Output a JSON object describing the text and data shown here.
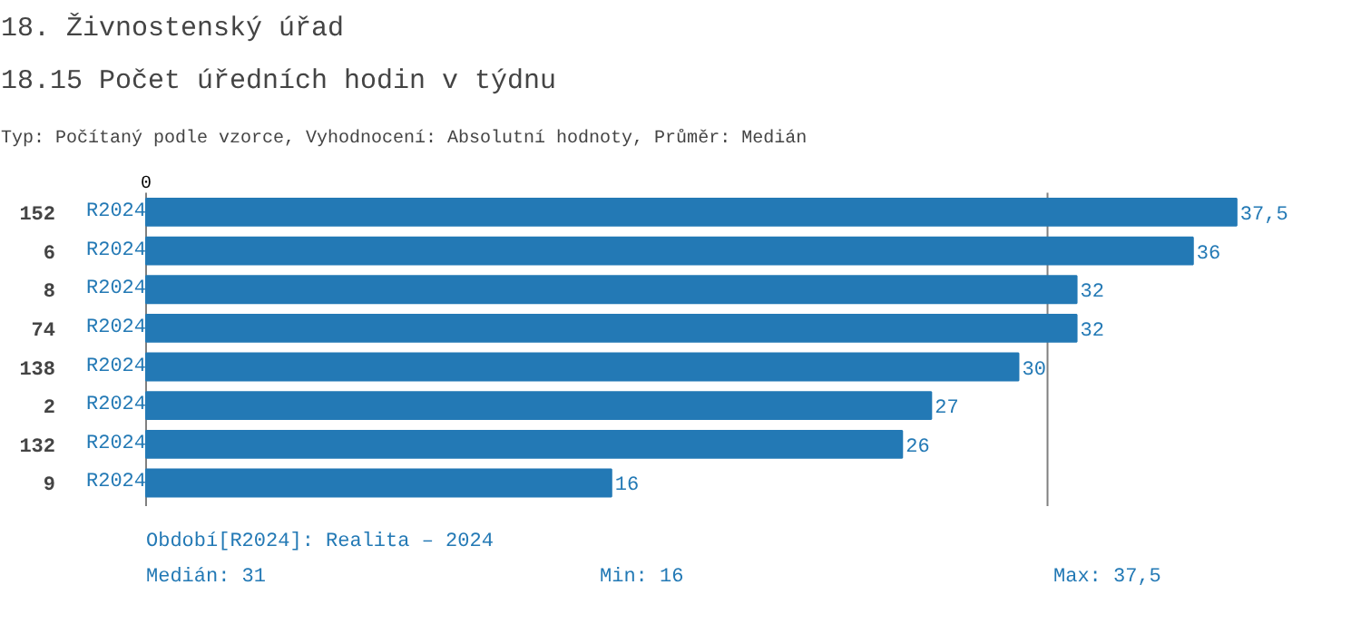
{
  "chart_data": {
    "type": "bar",
    "orientation": "horizontal",
    "title": "18. Živnostenský úřad",
    "subtitle": "18.15 Počet úředních hodin v týdnu",
    "categories": [
      "152",
      "6",
      "8",
      "74",
      "138",
      "2",
      "132",
      "9"
    ],
    "series": [
      {
        "name": "R2024",
        "color": "#2379b5",
        "values": [
          37.5,
          36,
          32,
          32,
          30,
          27,
          26,
          16
        ],
        "value_labels": [
          "37,5",
          "36",
          "32",
          "32",
          "30",
          "27",
          "26",
          "16"
        ]
      }
    ],
    "grid": false,
    "ref_lines": [
      {
        "axis": "x",
        "value": 31,
        "color": "#808080"
      }
    ],
    "annotations": [
      "Typ: Počítaný podle vzorce, Vyhodnocení: Absolutní hodnoty, Průměr: Medián",
      "0",
      "Období[R2024]: Realita – 2024",
      "Medián: 31",
      "Min: 16",
      "Max: 37,5"
    ]
  }
}
